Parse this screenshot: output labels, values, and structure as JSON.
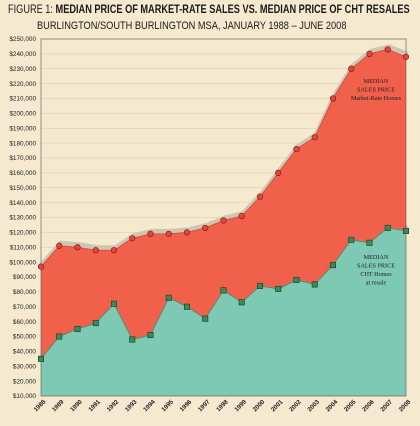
{
  "title": {
    "prefix": "FIGURE 1:",
    "main": "MEDIAN PRICE OF MARKET-RATE SALES VS. MEDIAN PRICE OF CHT RESALES",
    "subtitle": "BURLINGTON/SOUTH BURLINGTON MSA, JANUARY 1988 – JUNE 2008"
  },
  "colors": {
    "background": "#f5ead0",
    "market_fill": "#f0604a",
    "cht_fill": "#7dc9b4",
    "grid": "#d8c9a6",
    "shadow": "#cfc4ad",
    "market_marker": "#e8453a",
    "cht_marker": "#3c8a5c"
  },
  "chart_data": {
    "type": "area",
    "x": [
      "1988",
      "1989",
      "1990",
      "1991",
      "1992",
      "1993",
      "1994",
      "1995",
      "1996",
      "1997",
      "1998",
      "1999",
      "2000",
      "2001",
      "2002",
      "2003",
      "2004",
      "2005",
      "2006",
      "2007",
      "2008"
    ],
    "ylim": [
      10000,
      250000
    ],
    "y_ticks": [
      "$10,000",
      "$20,000",
      "$30,000",
      "$40,000",
      "$50,000",
      "$60,000",
      "$70,000",
      "$80,000",
      "$90,000",
      "$100,000",
      "$110,000",
      "$120,000",
      "$130,000",
      "$140,000",
      "$150,000",
      "$160,000",
      "$170,000",
      "$180,000",
      "$190,000",
      "$200,000",
      "$210,000",
      "$220,000",
      "$230,000",
      "$240,000",
      "$250,000"
    ],
    "grid": true,
    "series": [
      {
        "id": "market",
        "label": [
          "MEDIAN",
          "SALES PRICE",
          "Market-Rate Homes"
        ],
        "marker": "circle",
        "values": [
          97000,
          111000,
          110000,
          108000,
          108000,
          116000,
          119000,
          119000,
          120000,
          123000,
          128000,
          131000,
          144000,
          160000,
          176000,
          184000,
          210000,
          230000,
          240000,
          243000,
          238000
        ]
      },
      {
        "id": "cht",
        "label": [
          "MEDIAN",
          "SALES PRICE",
          "CHT Homes",
          "at resale"
        ],
        "marker": "square",
        "values": [
          35000,
          50000,
          55000,
          59000,
          72000,
          48000,
          51000,
          76000,
          70000,
          62000,
          81000,
          73000,
          84000,
          82000,
          88000,
          85000,
          98000,
          115000,
          113000,
          123000,
          121000
        ]
      }
    ]
  }
}
